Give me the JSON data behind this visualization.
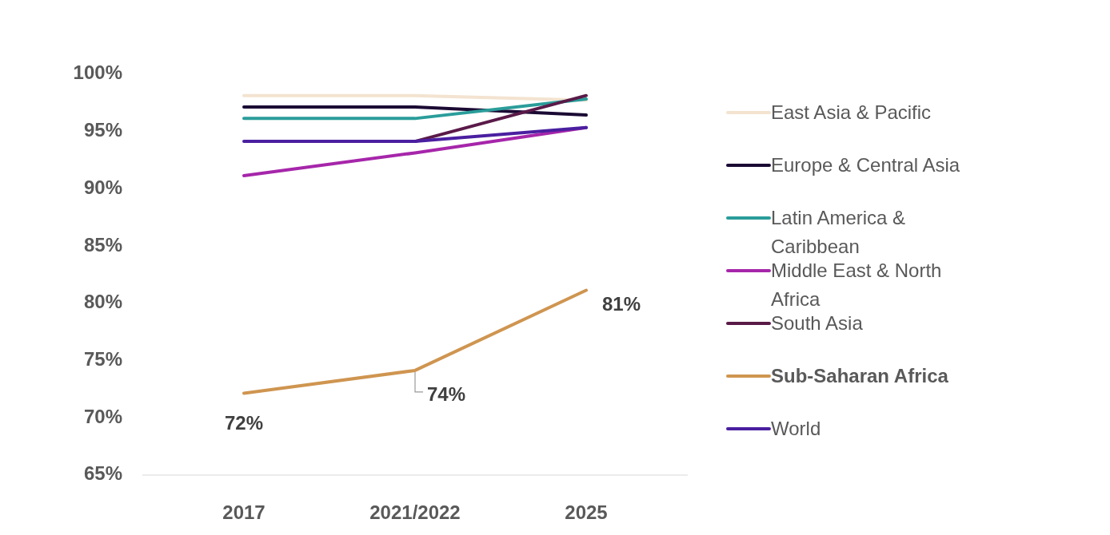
{
  "chart_data": {
    "type": "line",
    "categories": [
      "2017",
      "2021/2022",
      "2025"
    ],
    "series": [
      {
        "name": "East Asia & Pacific",
        "color": "#f3e3d0",
        "values": [
          98,
          98,
          97.6
        ]
      },
      {
        "name": "Europe & Central Asia",
        "color": "#1a0a33",
        "values": [
          97,
          97,
          96.3
        ]
      },
      {
        "name": "Latin America & Caribbean",
        "color": "#2a9d9a",
        "values": [
          96,
          96,
          97.7
        ]
      },
      {
        "name": "Middle East & North Africa",
        "color": "#a626aa",
        "values": [
          91,
          93,
          95.2
        ]
      },
      {
        "name": "South Asia",
        "color": "#5a1a48",
        "values": [
          null,
          94,
          98
        ]
      },
      {
        "name": "Sub-Saharan Africa",
        "color": "#cf9550",
        "values": [
          72,
          74,
          81
        ],
        "value_labels": [
          "72%",
          "74%",
          "81%"
        ]
      },
      {
        "name": "World",
        "color": "#4a1fa0",
        "values": [
          94,
          94,
          95.2
        ]
      }
    ],
    "ylim": [
      65,
      100
    ],
    "yticks": [
      {
        "value": 65,
        "label": "65%"
      },
      {
        "value": 70,
        "label": "70%"
      },
      {
        "value": 75,
        "label": "75%"
      },
      {
        "value": 80,
        "label": "80%"
      },
      {
        "value": 85,
        "label": "85%"
      },
      {
        "value": 90,
        "label": "90%"
      },
      {
        "value": 95,
        "label": "95%"
      },
      {
        "value": 100,
        "label": "100%"
      }
    ],
    "grid": false,
    "legend": "right",
    "marker": "none",
    "line_style": "solid"
  }
}
